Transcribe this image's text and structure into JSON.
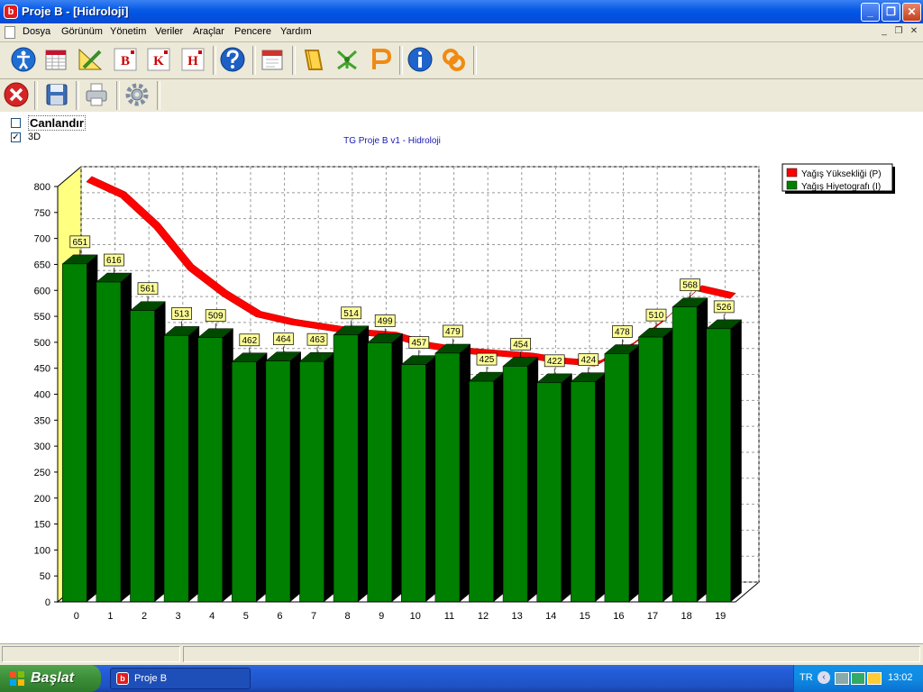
{
  "window": {
    "title": "Proje B - [Hidroloji]",
    "app_icon_letter": "b"
  },
  "menu": [
    "Dosya",
    "Görünüm",
    "Yönetim",
    "Veriler",
    "Araçlar",
    "Pencere",
    "Yardım"
  ],
  "toolbar": {
    "letter_buttons": [
      "B",
      "K",
      "H"
    ]
  },
  "options": {
    "animate_label": "Canlandır",
    "animate_checked": false,
    "threed_label": "3D",
    "threed_checked": true
  },
  "chart_data": {
    "type": "bar",
    "title": "TG Proje B v1 - Hidroloji",
    "categories": [
      "0",
      "1",
      "2",
      "3",
      "4",
      "5",
      "6",
      "7",
      "8",
      "9",
      "10",
      "11",
      "12",
      "13",
      "14",
      "15",
      "16",
      "17",
      "18",
      "19"
    ],
    "ylim": [
      0,
      800
    ],
    "yticks": [
      0,
      50,
      100,
      150,
      200,
      250,
      300,
      350,
      400,
      450,
      500,
      550,
      600,
      650,
      700,
      750,
      800
    ],
    "series": [
      {
        "name": "Yağış Yüksekliği (P)",
        "type": "line",
        "color": "#ff0000",
        "values": [
          790,
          760,
          700,
          620,
          570,
          530,
          515,
          505,
          495,
          490,
          470,
          460,
          455,
          450,
          440,
          435,
          470,
          520,
          580,
          565
        ]
      },
      {
        "name": "Yağış Hiyetografı (I)",
        "type": "bar",
        "color": "#008000",
        "values": [
          651,
          616,
          561,
          513,
          509,
          462,
          464,
          463,
          514,
          499,
          457,
          479,
          425,
          454,
          422,
          424,
          478,
          510,
          568,
          526
        ]
      }
    ],
    "grid": true,
    "legend": "top-right",
    "three_d": true
  },
  "taskbar": {
    "start_label": "Başlat",
    "task_label": "Proje B",
    "lang": "TR",
    "clock": "13:02"
  }
}
